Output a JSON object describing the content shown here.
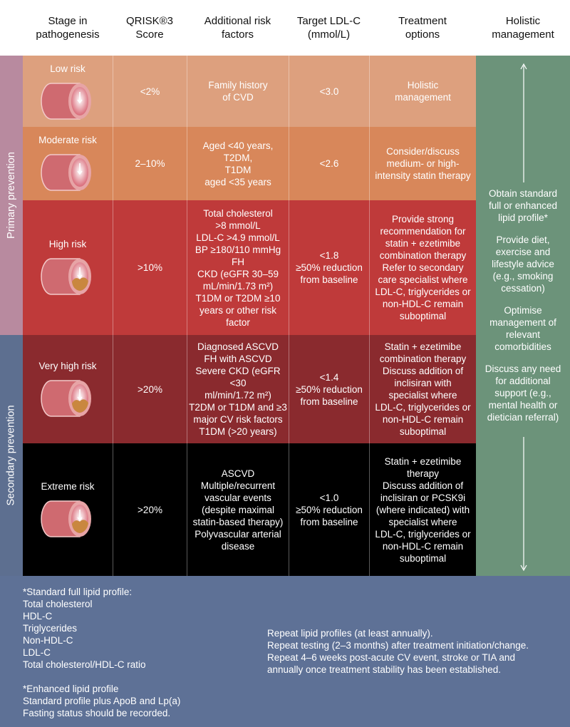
{
  "header": {
    "stage": "Stage in\npathogenesis",
    "qrisk": "QRISK®3\nScore",
    "factors": "Additional risk\nfactors",
    "target": "Target LDL-C\n(mmol/L)",
    "treatment": "Treatment\noptions",
    "holistic": "Holistic\nmanagement"
  },
  "sides": [
    "Primary prevention",
    "Secondary prevention"
  ],
  "rows": [
    {
      "stage": "Low risk",
      "qrisk": "<2%",
      "factors": "Family history\nof CVD",
      "target": "<3.0",
      "treatment": "Holistic\nmanagement"
    },
    {
      "stage": "Moderate risk",
      "qrisk": "2–10%",
      "factors": "Aged <40 years, T2DM,\nT1DM\naged <35 years",
      "target": "<2.6",
      "treatment": "Consider/discuss\nmedium- or high-\nintensity statin therapy"
    },
    {
      "stage": "High risk",
      "qrisk": ">10%",
      "factors": "Total cholesterol\n>8 mmol/L\nLDL-C >4.9 mmol/L\nBP ≥180/110 mmHg\nFH\nCKD (eGFR 30–59\nmL/min/1.73 m²)\nT1DM or T2DM ≥10\nyears or other risk\nfactor",
      "target": "<1.8\n≥50% reduction\nfrom baseline",
      "treatment": "Provide strong\nrecommendation for\nstatin + ezetimibe\ncombination therapy\nRefer to secondary\ncare specialist where\nLDL-C, triglycerides or\nnon-HDL-C remain\nsuboptimal"
    },
    {
      "stage": "Very high risk",
      "qrisk": ">20%",
      "factors": "Diagnosed ASCVD\nFH with ASCVD\nSevere CKD (eGFR <30\nml/min/1.72 m²)\nT2DM or T1DM and ≥3\nmajor CV risk factors\nT1DM (>20 years)",
      "target": "<1.4\n≥50% reduction\nfrom baseline",
      "treatment": "Statin + ezetimibe\ncombination therapy\nDiscuss addition of\ninclisiran with\nspecialist where\nLDL-C, triglycerides or\nnon-HDL-C remain\nsuboptimal"
    },
    {
      "stage": "Extreme risk",
      "qrisk": ">20%",
      "factors": "ASCVD\nMultiple/recurrent\nvascular events\n(despite maximal\nstatin-based therapy)\nPolyvascular arterial\ndisease",
      "target": "<1.0\n≥50% reduction\nfrom baseline",
      "treatment": "Statin + ezetimibe\ntherapy\nDiscuss addition of\ninclisiran or PCSK9i\n(where indicated) with\nspecialist where\nLDL-C, triglycerides or\nnon-HDL-C remain\nsuboptimal"
    }
  ],
  "holistic": [
    "Obtain standard\nfull or enhanced\nlipid profile*",
    "Provide diet,\nexercise and\nlifestyle advice\n(e.g., smoking\ncessation)",
    "Optimise\nmanagement of\nrelevant\ncomorbidities",
    "Discuss any need\nfor additional\nsupport (e.g.,\nmental health or\ndietician referral)"
  ],
  "footer": {
    "standard": "*Standard full lipid profile:\nTotal cholesterol\nHDL-C\nTriglycerides\nNon-HDL-C\nLDL-C\nTotal cholesterol/HDL-C ratio",
    "enhanced": "*Enhanced lipid profile\nStandard profile plus ApoB and Lp(a)\nFasting status should be recorded.",
    "repeat": "Repeat lipid profiles (at least annually).\nRepeat testing (2–3 months) after treatment initiation/change.\nRepeat 4–6 weeks post-acute CV event, stroke or TIA and\nannually once treatment stability has been established."
  }
}
